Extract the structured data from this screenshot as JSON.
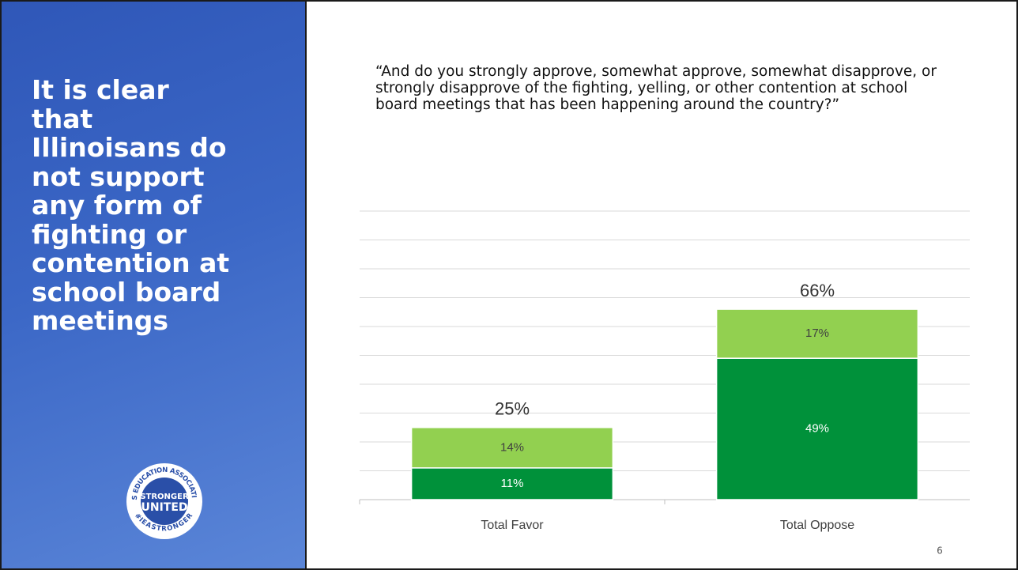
{
  "title_lines": [
    "It is clear",
    "that",
    "Illinoisans do",
    "not support",
    "any form of",
    "fighting or",
    "contention at",
    "school board",
    "meetings"
  ],
  "logo": {
    "ring_top": "ILLINOIS EDUCATION ASSOCIATION-NEA",
    "ring_bottom": "#IEASTRONGER",
    "lines": [
      "STRONGER",
      "UNITED"
    ]
  },
  "question": "“And do you strongly approve, somewhat approve, somewhat disapprove, or strongly disapprove of the fighting, yelling, or other contention at school board meetings that has been happening around the country?”",
  "slide_number": "6",
  "chart_data": {
    "type": "stacked_bar",
    "categories": [
      "Total Favor",
      "Total Oppose"
    ],
    "series": [
      {
        "color": "#00913a",
        "values": [
          11,
          49
        ],
        "value_labels": [
          "11%",
          "49%"
        ]
      },
      {
        "color": "#92d050",
        "values": [
          14,
          17
        ],
        "value_labels": [
          "14%",
          "17%"
        ]
      }
    ],
    "totals": [
      25,
      66
    ],
    "total_labels": [
      "25%",
      "66%"
    ],
    "ylim": [
      0,
      100
    ],
    "yticks": [
      0,
      10,
      20,
      30,
      40,
      50,
      60,
      70,
      80,
      90,
      100
    ],
    "grid": true
  }
}
